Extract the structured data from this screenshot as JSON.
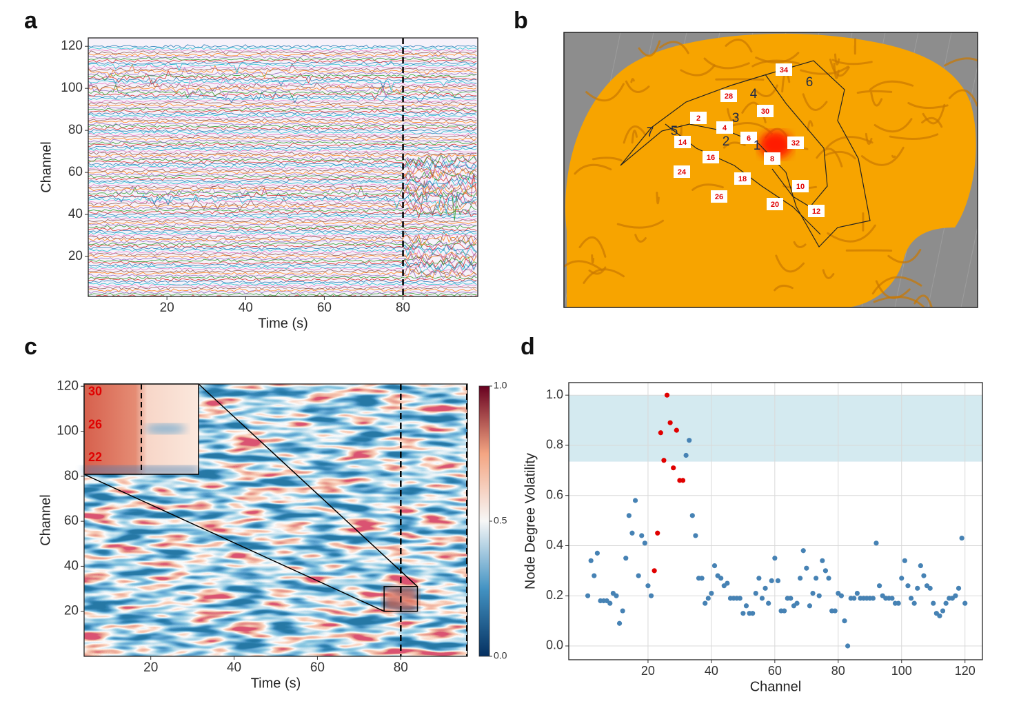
{
  "figure": {
    "panel_labels": [
      "a",
      "b",
      "c",
      "d"
    ],
    "brain": {
      "electrodes": [
        "34",
        "28",
        "30",
        "2",
        "4",
        "6",
        "32",
        "8",
        "14",
        "16",
        "24",
        "18",
        "10",
        "26",
        "20",
        "12"
      ],
      "regions": [
        "6",
        "4",
        "3",
        "7",
        "5",
        "2",
        "1"
      ]
    }
  },
  "chart_data": [
    {
      "type": "traces",
      "xlabel": "Time (s)",
      "ylabel": "Channel",
      "xlim": [
        0,
        99
      ],
      "ylim": [
        1,
        124
      ],
      "xticks": [
        20,
        40,
        60,
        80
      ],
      "yticks": [
        20,
        40,
        60,
        80,
        100,
        120
      ],
      "event_time": 80,
      "grid": false
    },
    {
      "type": "heatmap",
      "xlabel": "Time (s)",
      "ylabel": "Channel",
      "xlim": [
        4,
        96
      ],
      "ylim": [
        0,
        121
      ],
      "xticks": [
        20,
        40,
        60,
        80
      ],
      "yticks": [
        20,
        40,
        60,
        80,
        100,
        120
      ],
      "event_time": 80,
      "grid": false,
      "colorbar": {
        "lim": [
          0,
          1
        ],
        "ticks": [
          {
            "value": 0,
            "label": "0.0"
          },
          {
            "value": 0.5,
            "label": "0.5"
          },
          {
            "value": 1,
            "label": "1.0"
          }
        ]
      },
      "zoom": {
        "xlim": [
          76,
          84
        ],
        "ylim": [
          20,
          31
        ],
        "labels": [
          30,
          26,
          22
        ]
      }
    },
    {
      "type": "scatter",
      "xlabel": "Channel",
      "ylabel": "Node Degree Volatility",
      "xlim": [
        -5,
        125.5
      ],
      "ylim": [
        -0.055,
        1.05
      ],
      "xticks": [
        20,
        40,
        60,
        80,
        100,
        120
      ],
      "yticks": [
        {
          "value": 0,
          "label": "0.0"
        },
        {
          "value": 0.2,
          "label": "0.2"
        },
        {
          "value": 0.4,
          "label": "0.4"
        },
        {
          "value": 0.6,
          "label": "0.6"
        },
        {
          "value": 0.8,
          "label": "0.8"
        },
        {
          "value": 1,
          "label": "1.0"
        }
      ],
      "grid": true,
      "band": [
        0.735,
        1.0
      ],
      "band_color": "#d4eaf0",
      "series": [
        {
          "color": "#4682b4",
          "x": [
            1,
            2,
            3,
            4,
            5,
            6,
            7,
            8,
            9,
            10,
            11,
            12,
            13,
            14,
            15,
            16,
            17,
            18,
            19,
            20,
            21,
            32,
            33,
            34,
            35,
            36,
            37,
            38,
            39,
            40,
            41,
            42,
            43,
            44,
            45,
            46,
            47,
            48,
            49,
            50,
            51,
            52,
            53,
            54,
            55,
            56,
            57,
            58,
            59,
            60,
            61,
            62,
            63,
            64,
            65,
            66,
            67,
            68,
            69,
            70,
            71,
            72,
            73,
            74,
            75,
            76,
            77,
            78,
            79,
            80,
            81,
            82,
            83,
            84,
            85,
            86,
            87,
            88,
            89,
            90,
            91,
            92,
            93,
            94,
            95,
            96,
            97,
            98,
            99,
            100,
            101,
            102,
            103,
            104,
            105,
            106,
            107,
            108,
            109,
            110,
            111,
            112,
            113,
            114,
            115,
            116,
            117,
            118,
            119,
            120
          ],
          "values": [
            0.2,
            0.34,
            0.28,
            0.37,
            0.18,
            0.18,
            0.18,
            0.17,
            0.21,
            0.2,
            0.09,
            0.14,
            0.35,
            0.52,
            0.45,
            0.58,
            0.28,
            0.44,
            0.41,
            0.24,
            0.2,
            0.76,
            0.82,
            0.52,
            0.44,
            0.27,
            0.27,
            0.17,
            0.19,
            0.21,
            0.32,
            0.28,
            0.27,
            0.24,
            0.25,
            0.19,
            0.19,
            0.19,
            0.19,
            0.13,
            0.16,
            0.13,
            0.13,
            0.21,
            0.27,
            0.19,
            0.23,
            0.17,
            0.26,
            0.35,
            0.26,
            0.14,
            0.14,
            0.19,
            0.19,
            0.16,
            0.17,
            0.27,
            0.38,
            0.31,
            0.16,
            0.21,
            0.27,
            0.2,
            0.34,
            0.3,
            0.27,
            0.14,
            0.14,
            0.21,
            0.2,
            0.1,
            0.0,
            0.19,
            0.19,
            0.21,
            0.19,
            0.19,
            0.19,
            0.19,
            0.19,
            0.41,
            0.24,
            0.2,
            0.19,
            0.19,
            0.19,
            0.17,
            0.17,
            0.27,
            0.34,
            0.24,
            0.19,
            0.17,
            0.23,
            0.32,
            0.28,
            0.24,
            0.23,
            0.17,
            0.13,
            0.12,
            0.14,
            0.17,
            0.19,
            0.19,
            0.2,
            0.23,
            0.43,
            0.17
          ]
        },
        {
          "color": "#e00000",
          "x": [
            22,
            23,
            24,
            25,
            26,
            27,
            28,
            29,
            30,
            31
          ],
          "values": [
            0.3,
            0.45,
            0.85,
            0.74,
            1.0,
            0.89,
            0.71,
            0.86,
            0.66,
            0.66
          ]
        }
      ]
    }
  ]
}
